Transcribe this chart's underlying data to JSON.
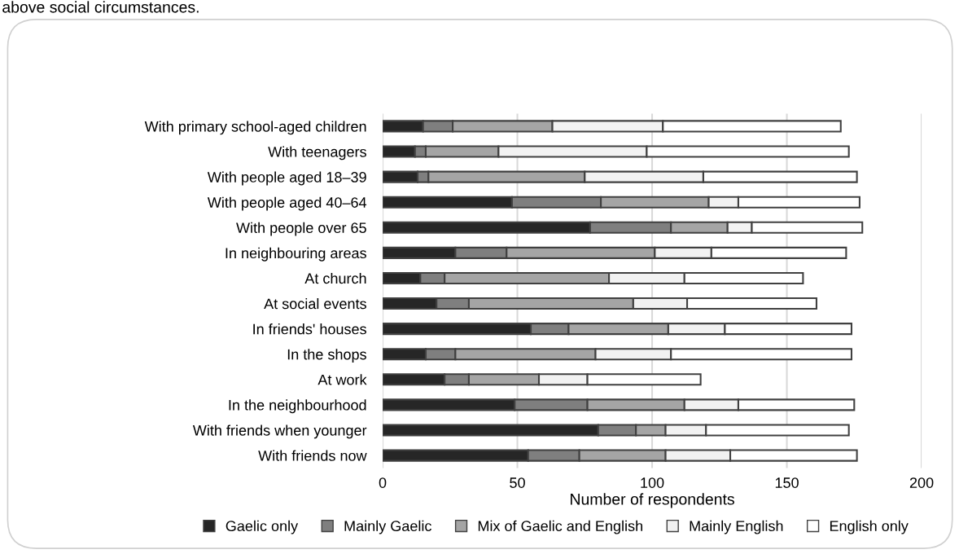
{
  "chart_data": {
    "type": "bar",
    "orientation": "horizontal",
    "stacked": true,
    "annotations": [
      "above social circumstances."
    ],
    "xlabel": "Number of respondents",
    "categories": [
      "With primary school-aged children",
      "With teenagers",
      "With people aged 18–39",
      "With people aged 40–64",
      "With people over 65",
      "In neighbouring areas",
      "At church",
      "At social events",
      "In friends' houses",
      "In the shops",
      "At work",
      "In the neighbourhood",
      "With friends when younger",
      "With friends now"
    ],
    "series": [
      {
        "name": "Gaelic only",
        "color": "#262626",
        "values": [
          15,
          12,
          13,
          48,
          77,
          27,
          14,
          20,
          55,
          16,
          23,
          49,
          80,
          54
        ]
      },
      {
        "name": "Mainly Gaelic",
        "color": "#7f7f7f",
        "values": [
          11,
          4,
          4,
          33,
          30,
          19,
          9,
          12,
          14,
          11,
          9,
          27,
          14,
          19
        ]
      },
      {
        "name": "Mix of Gaelic and English",
        "color": "#a5a5a5",
        "values": [
          37,
          27,
          58,
          40,
          21,
          55,
          61,
          61,
          37,
          52,
          26,
          36,
          11,
          32
        ]
      },
      {
        "name": "Mainly English",
        "color": "#f2f2f2",
        "values": [
          41,
          55,
          44,
          11,
          9,
          21,
          28,
          20,
          21,
          28,
          18,
          20,
          15,
          24
        ]
      },
      {
        "name": "English only",
        "color": "#ffffff",
        "values": [
          66,
          75,
          57,
          45,
          41,
          50,
          44,
          48,
          47,
          67,
          42,
          43,
          53,
          47
        ]
      }
    ],
    "xlim": [
      0,
      200
    ],
    "xticks": [
      0,
      50,
      100,
      150,
      200
    ],
    "grid": "x",
    "legend": "bottom"
  }
}
